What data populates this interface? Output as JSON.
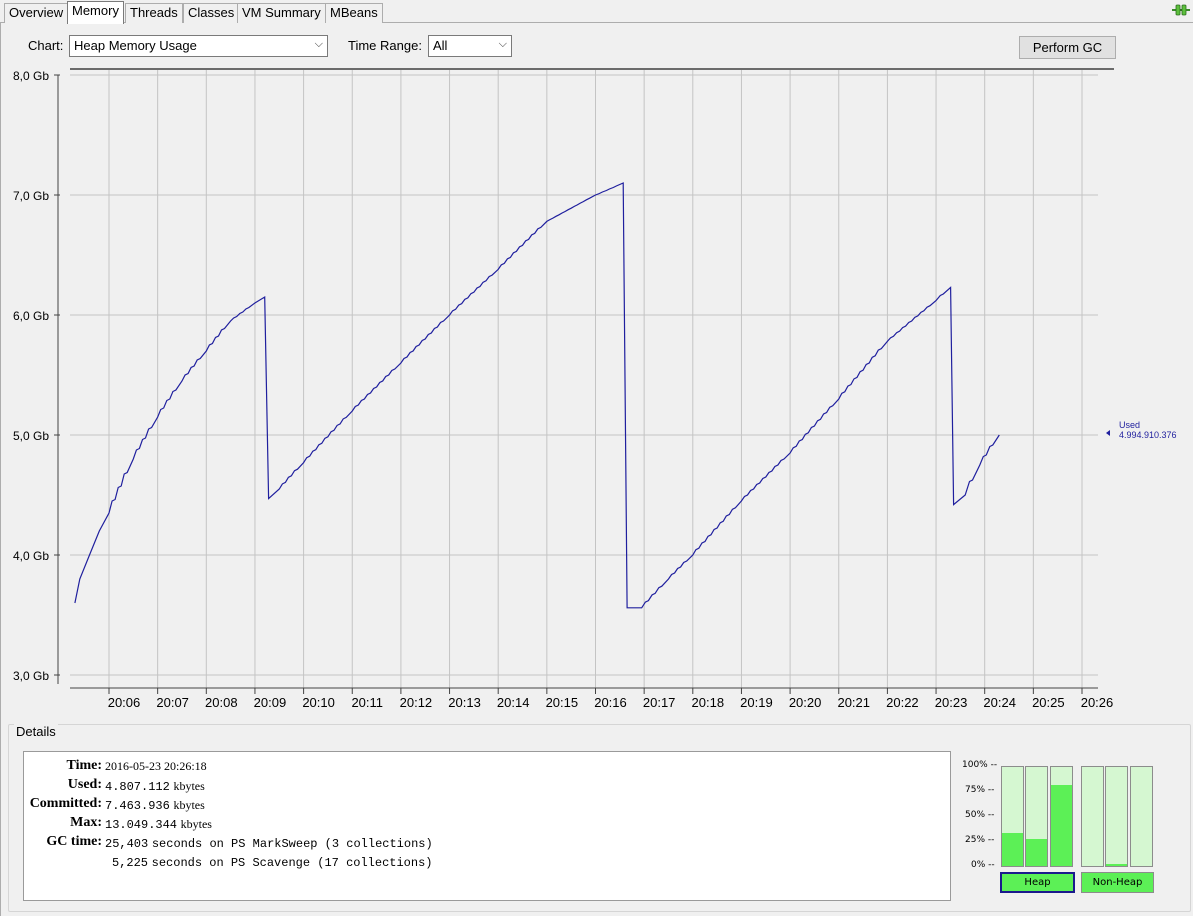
{
  "tabs": [
    {
      "label": "Overview",
      "active": false
    },
    {
      "label": "Memory",
      "active": true
    },
    {
      "label": "Threads",
      "active": false
    },
    {
      "label": "Classes",
      "active": false
    },
    {
      "label": "VM Summary",
      "active": false
    },
    {
      "label": "MBeans",
      "active": false
    }
  ],
  "controls": {
    "chart_label": "Chart:",
    "chart_value": "Heap Memory Usage",
    "time_range_label": "Time Range:",
    "time_range_value": "All",
    "perform_gc_label": "Perform GC"
  },
  "chart_data": {
    "type": "line",
    "title": "",
    "ylabel": "",
    "xlabel": "",
    "ylim": [
      3.0,
      8.0
    ],
    "y_ticks": [
      "3,0 Gb",
      "4,0 Gb",
      "5,0 Gb",
      "6,0 Gb",
      "7,0 Gb",
      "8,0 Gb"
    ],
    "x_ticks": [
      "20:06",
      "20:07",
      "20:08",
      "20:09",
      "20:10",
      "20:11",
      "20:12",
      "20:13",
      "20:14",
      "20:15",
      "20:16",
      "20:17",
      "20:18",
      "20:19",
      "20:20",
      "20:21",
      "20:22",
      "20:23",
      "20:24",
      "20:25",
      "20:26"
    ],
    "series": [
      {
        "name": "Used",
        "color": "#1f1f9e",
        "points": [
          [
            -0.7,
            3.6
          ],
          [
            -0.6,
            3.8
          ],
          [
            -0.4,
            4.0
          ],
          [
            -0.2,
            4.2
          ],
          [
            0.0,
            4.35
          ],
          [
            0.5,
            4.8
          ],
          [
            1.0,
            5.15
          ],
          [
            1.5,
            5.45
          ],
          [
            2.0,
            5.7
          ],
          [
            2.5,
            5.95
          ],
          [
            3.0,
            6.1
          ],
          [
            3.2,
            6.15
          ],
          [
            3.28,
            4.47
          ],
          [
            3.5,
            4.55
          ],
          [
            4.0,
            4.77
          ],
          [
            5.0,
            5.2
          ],
          [
            6.0,
            5.6
          ],
          [
            7.0,
            6.0
          ],
          [
            8.0,
            6.38
          ],
          [
            9.0,
            6.78
          ],
          [
            10.0,
            7.0
          ],
          [
            10.57,
            7.1
          ],
          [
            10.65,
            3.56
          ],
          [
            10.95,
            3.56
          ],
          [
            11.5,
            3.8
          ],
          [
            12.0,
            4.0
          ],
          [
            13.0,
            4.45
          ],
          [
            14.0,
            4.85
          ],
          [
            15.0,
            5.3
          ],
          [
            16.0,
            5.78
          ],
          [
            17.0,
            6.12
          ],
          [
            17.3,
            6.23
          ],
          [
            17.36,
            4.42
          ],
          [
            17.6,
            4.5
          ],
          [
            17.9,
            4.75
          ],
          [
            18.3,
            5.0
          ]
        ],
        "last_label": "Used",
        "last_value": "4.994.910.376"
      }
    ],
    "grid": true
  },
  "details": {
    "title": "Details",
    "rows": [
      {
        "label": "Time:",
        "value": "2016-05-23 20:26:18"
      },
      {
        "label": "Used:",
        "value": "4.807.112",
        "unit": "kbytes"
      },
      {
        "label": "Committed:",
        "value": "7.463.936",
        "unit": "kbytes"
      },
      {
        "label": "Max:",
        "value": "13.049.344",
        "unit": "kbytes"
      },
      {
        "label": "GC time:",
        "value": "25,403",
        "text": "seconds on PS MarkSweep (3 collections)"
      },
      {
        "label": "",
        "value": "5,225",
        "text": "seconds on PS Scavenge (17 collections)"
      }
    ]
  },
  "pools": {
    "pct_labels": [
      "100% --",
      "75% --",
      "50% --",
      "25% --",
      "0% --"
    ],
    "heap_fill": [
      0.33,
      0.27,
      0.82
    ],
    "nonheap_fill": [
      0.0,
      0.02,
      0.0
    ],
    "heap_label": "Heap",
    "nonheap_label": "Non-Heap"
  }
}
